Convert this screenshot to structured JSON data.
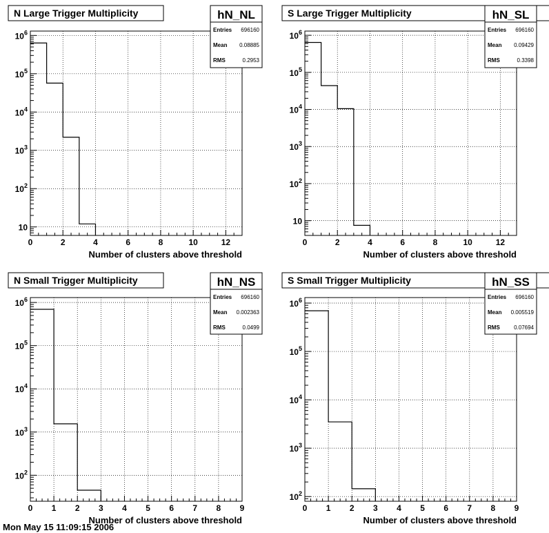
{
  "footer": "Mon May 15 11:09:15 2006",
  "chart_data": [
    {
      "type": "bar",
      "title": "N Large Trigger Multiplicity",
      "histogram_name": "hN_NL",
      "stats": [
        {
          "label": "Entries",
          "value": "696160"
        },
        {
          "label": "Mean",
          "value": "0.08885"
        },
        {
          "label": "RMS",
          "value": "0.2953"
        }
      ],
      "xlabel": "Number of clusters above threshold",
      "ylabel": "",
      "xlim": [
        0,
        13
      ],
      "xticks": [
        "0",
        "2",
        "4",
        "6",
        "8",
        "10",
        "12"
      ],
      "xtick_values": [
        0,
        2,
        4,
        6,
        8,
        10,
        12
      ],
      "yscale": "log",
      "ylim": [
        6,
        1300000
      ],
      "ytick_decades": [
        1,
        2,
        3,
        4,
        5,
        6
      ],
      "bin_edges": [
        0,
        1,
        2,
        3,
        4
      ],
      "values": [
        636000,
        57000,
        2200,
        12
      ],
      "grid": true
    },
    {
      "type": "bar",
      "title": "S Large Trigger Multiplicity",
      "histogram_name": "hN_SL",
      "stats": [
        {
          "label": "Entries",
          "value": "696160"
        },
        {
          "label": "Mean",
          "value": "0.09429"
        },
        {
          "label": "RMS",
          "value": "0.3398"
        }
      ],
      "xlabel": "Number of clusters above threshold",
      "ylabel": "",
      "xlim": [
        0,
        13
      ],
      "xticks": [
        "0",
        "2",
        "4",
        "6",
        "8",
        "10",
        "12"
      ],
      "xtick_values": [
        0,
        2,
        4,
        6,
        8,
        10,
        12
      ],
      "yscale": "log",
      "ylim": [
        4,
        1300000
      ],
      "ytick_decades": [
        1,
        2,
        3,
        4,
        5,
        6
      ],
      "bin_edges": [
        0,
        1,
        2,
        3,
        4
      ],
      "values": [
        640000,
        44000,
        10500,
        7.5
      ],
      "grid": true
    },
    {
      "type": "bar",
      "title": "N Small Trigger Multiplicity",
      "histogram_name": "hN_NS",
      "stats": [
        {
          "label": "Entries",
          "value": "696160"
        },
        {
          "label": "Mean",
          "value": "0.002363"
        },
        {
          "label": "RMS",
          "value": "0.0499"
        }
      ],
      "xlabel": "Number of clusters above threshold",
      "ylabel": "",
      "xlim": [
        0,
        9
      ],
      "xticks": [
        "0",
        "1",
        "2",
        "3",
        "4",
        "5",
        "6",
        "7",
        "8",
        "9"
      ],
      "xtick_values": [
        0,
        1,
        2,
        3,
        4,
        5,
        6,
        7,
        8,
        9
      ],
      "yscale": "log",
      "ylim": [
        25,
        1300000
      ],
      "ytick_decades": [
        2,
        3,
        4,
        5,
        6
      ],
      "bin_edges": [
        0,
        1,
        2,
        3
      ],
      "values": [
        694600,
        1550,
        45
      ],
      "grid": true
    },
    {
      "type": "bar",
      "title": "S Small Trigger Multiplicity",
      "histogram_name": "hN_SS",
      "stats": [
        {
          "label": "Entries",
          "value": "696160"
        },
        {
          "label": "Mean",
          "value": "0.005519"
        },
        {
          "label": "RMS",
          "value": "0.07694"
        }
      ],
      "xlabel": "Number of clusters above threshold",
      "ylabel": "",
      "xlim": [
        0,
        9
      ],
      "xticks": [
        "0",
        "1",
        "2",
        "3",
        "4",
        "5",
        "6",
        "7",
        "8",
        "9"
      ],
      "xtick_values": [
        0,
        1,
        2,
        3,
        4,
        5,
        6,
        7,
        8,
        9
      ],
      "yscale": "log",
      "ylim": [
        80,
        1300000
      ],
      "ytick_decades": [
        2,
        3,
        4,
        5,
        6
      ],
      "bin_edges": [
        0,
        1,
        2,
        3
      ],
      "values": [
        692500,
        3500,
        145
      ],
      "grid": true
    }
  ]
}
